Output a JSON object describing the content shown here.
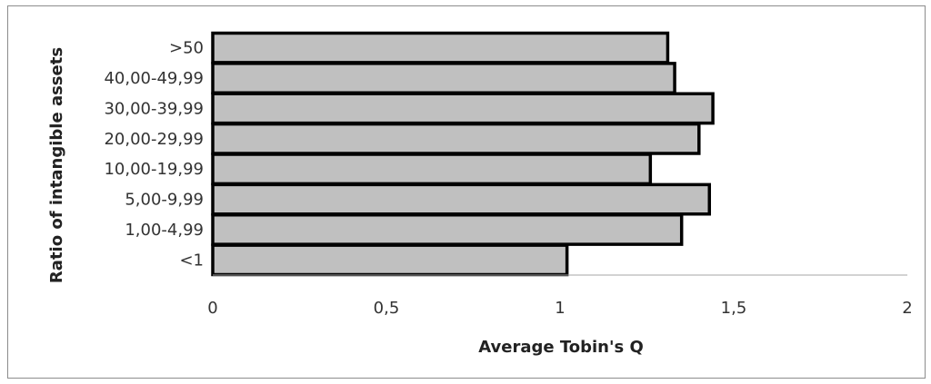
{
  "chart_data": {
    "type": "bar",
    "orientation": "horizontal",
    "xlabel": "Average Tobin's Q",
    "ylabel": "Ratio of intangible assets",
    "categories": [
      "<1",
      "1,00-4,99",
      "5,00-9,99",
      "10,00-19,99",
      "20,00-29,99",
      "30,00-39,99",
      "40,00-49,99",
      ">50"
    ],
    "values": [
      1.02,
      1.35,
      1.43,
      1.26,
      1.4,
      1.44,
      1.33,
      1.31
    ],
    "xlim": [
      0,
      2
    ],
    "xticks": [
      "0",
      "0,5",
      "1",
      "1,5",
      "2"
    ],
    "grid": false,
    "colors": {
      "bar_fill": "#c0c0c0",
      "bar_stroke": "#000000",
      "axis": "#a6a6a6"
    }
  }
}
